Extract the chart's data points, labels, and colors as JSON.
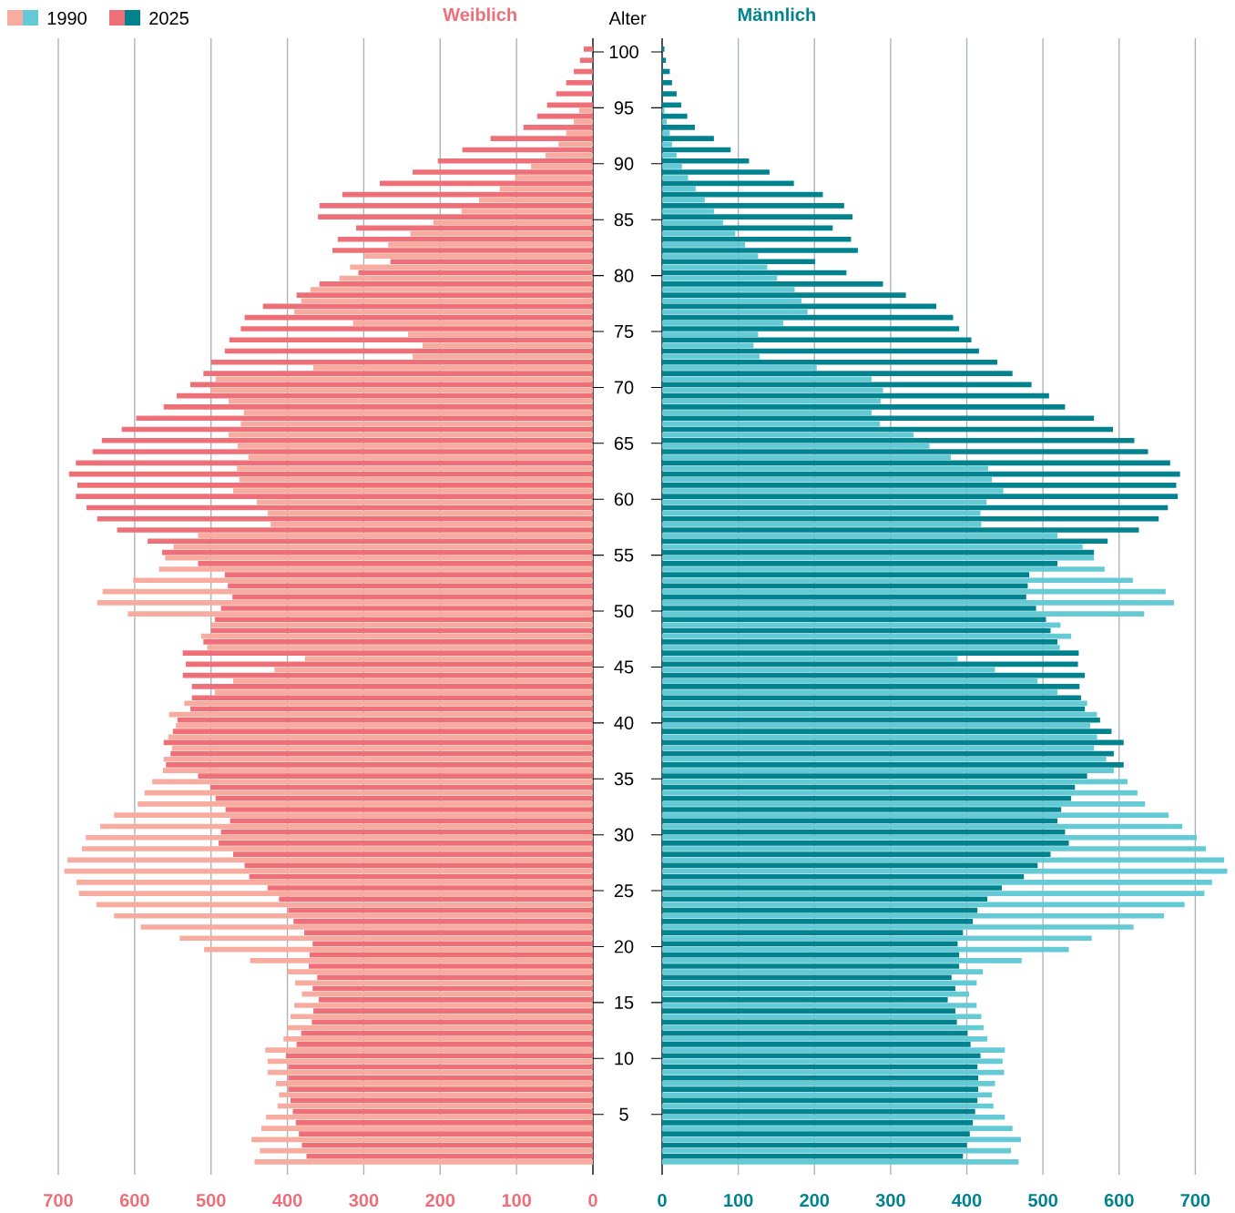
{
  "chart_data": [
    {
      "type": "bar",
      "orientation": "horizontal",
      "title": "Weiblich",
      "ylabel": "Alter",
      "categories": [
        "100",
        null,
        null,
        null,
        null,
        "95",
        null,
        null,
        null,
        null,
        "90",
        null,
        null,
        null,
        null,
        "85",
        null,
        null,
        null,
        null,
        "80",
        null,
        null,
        null,
        null,
        "75",
        null,
        null,
        null,
        null,
        "70",
        null,
        null,
        null,
        null,
        "65",
        null,
        null,
        null,
        null,
        "60",
        null,
        null,
        null,
        null,
        "55",
        null,
        null,
        null,
        null,
        "50",
        null,
        null,
        null,
        null,
        "45",
        null,
        null,
        null,
        null,
        "40",
        null,
        null,
        null,
        null,
        "35",
        null,
        null,
        null,
        null,
        "30",
        null,
        null,
        null,
        null,
        "25",
        null,
        null,
        null,
        null,
        "20",
        null,
        null,
        null,
        null,
        "15",
        null,
        null,
        null,
        null,
        "10",
        null,
        null,
        null,
        null,
        "5",
        null,
        null,
        null,
        null
      ],
      "series": [
        {
          "name": "1990",
          "color": "#f8ab9f",
          "values": [
            0,
            0,
            0,
            0,
            0,
            18,
            25,
            35,
            45,
            62,
            81,
            102,
            122,
            149,
            172,
            209,
            239,
            268,
            299,
            318,
            332,
            370,
            382,
            391,
            314,
            242,
            223,
            236,
            366,
            494,
            500,
            477,
            457,
            461,
            477,
            465,
            451,
            466,
            463,
            471,
            440,
            426,
            422,
            517,
            549,
            560,
            568,
            602,
            642,
            649,
            609,
            500,
            513,
            505,
            377,
            417,
            471,
            495,
            535,
            555,
            546,
            556,
            551,
            562,
            563,
            577,
            587,
            596,
            627,
            645,
            664,
            669,
            688,
            692,
            676,
            673,
            650,
            627,
            592,
            541,
            509,
            449,
            400,
            390,
            381,
            391,
            396,
            400,
            405,
            429,
            426,
            426,
            415,
            411,
            413,
            428,
            434,
            447,
            436,
            443
          ]
        },
        {
          "name": "2025",
          "color": "#ef6f79",
          "values": [
            12,
            17,
            25,
            35,
            48,
            60,
            73,
            91,
            134,
            171,
            203,
            236,
            279,
            328,
            358,
            360,
            310,
            334,
            341,
            265,
            307,
            358,
            388,
            432,
            456,
            461,
            476,
            482,
            500,
            510,
            527,
            545,
            562,
            598,
            617,
            643,
            655,
            677,
            686,
            675,
            677,
            663,
            649,
            623,
            583,
            564,
            517,
            482,
            478,
            472,
            487,
            495,
            500,
            510,
            537,
            533,
            537,
            525,
            525,
            527,
            544,
            550,
            562,
            553,
            559,
            517,
            501,
            494,
            481,
            475,
            487,
            490,
            471,
            456,
            450,
            426,
            411,
            399,
            392,
            378,
            367,
            371,
            372,
            361,
            367,
            359,
            366,
            368,
            382,
            388,
            402,
            399,
            399,
            399,
            396,
            393,
            389,
            385,
            381,
            375
          ]
        }
      ],
      "xlim": [
        700,
        0
      ],
      "xticks": [
        0,
        100,
        200,
        300,
        400,
        500,
        600,
        700
      ],
      "grid": "x",
      "legend": "top left"
    },
    {
      "type": "bar",
      "orientation": "horizontal",
      "title": "Männlich",
      "categories": [
        "100",
        null,
        null,
        null,
        null,
        "95",
        null,
        null,
        null,
        null,
        "90",
        null,
        null,
        null,
        null,
        "85",
        null,
        null,
        null,
        null,
        "80",
        null,
        null,
        null,
        null,
        "75",
        null,
        null,
        null,
        null,
        "70",
        null,
        null,
        null,
        null,
        "65",
        null,
        null,
        null,
        null,
        "60",
        null,
        null,
        null,
        null,
        "55",
        null,
        null,
        null,
        null,
        "50",
        null,
        null,
        null,
        null,
        "45",
        null,
        null,
        null,
        null,
        "40",
        null,
        null,
        null,
        null,
        "35",
        null,
        null,
        null,
        null,
        "30",
        null,
        null,
        null,
        null,
        "25",
        null,
        null,
        null,
        null,
        "20",
        null,
        null,
        null,
        null,
        "15",
        null,
        null,
        null,
        null,
        "10",
        null,
        null,
        null,
        null,
        "5",
        null,
        null,
        null,
        null
      ],
      "series": [
        {
          "color": "#63cad6",
          "values": [
            0,
            0,
            0,
            0,
            0,
            3,
            6,
            10,
            13,
            19,
            26,
            34,
            44,
            56,
            68,
            80,
            96,
            109,
            126,
            138,
            151,
            174,
            183,
            191,
            159,
            126,
            120,
            128,
            203,
            275,
            290,
            287,
            275,
            286,
            330,
            351,
            379,
            428,
            433,
            448,
            426,
            418,
            419,
            519,
            552,
            567,
            581,
            618,
            661,
            672,
            633,
            523,
            537,
            522,
            388,
            437,
            493,
            519,
            558,
            571,
            562,
            571,
            567,
            583,
            593,
            611,
            624,
            634,
            665,
            683,
            702,
            714,
            738,
            742,
            722,
            712,
            686,
            659,
            619,
            564,
            534,
            472,
            421,
            413,
            403,
            413,
            419,
            422,
            427,
            450,
            447,
            449,
            437,
            433,
            435,
            450,
            460,
            471,
            458,
            468
          ]
        },
        {
          "color": "#00838f",
          "values": [
            3,
            5,
            10,
            13,
            19,
            25,
            33,
            43,
            68,
            90,
            114,
            141,
            173,
            211,
            239,
            250,
            224,
            248,
            257,
            201,
            242,
            290,
            320,
            360,
            382,
            390,
            406,
            416,
            440,
            460,
            485,
            508,
            529,
            567,
            592,
            620,
            638,
            667,
            680,
            675,
            677,
            664,
            652,
            626,
            585,
            567,
            519,
            482,
            480,
            478,
            491,
            504,
            510,
            519,
            547,
            546,
            555,
            548,
            550,
            555,
            575,
            590,
            606,
            593,
            606,
            558,
            542,
            537,
            524,
            519,
            529,
            534,
            510,
            493,
            475,
            446,
            427,
            414,
            408,
            395,
            388,
            390,
            390,
            380,
            385,
            375,
            385,
            387,
            401,
            405,
            418,
            414,
            415,
            415,
            414,
            411,
            408,
            404,
            400,
            395
          ]
        }
      ],
      "xlim": [
        0,
        745
      ],
      "xticks": [
        0,
        100,
        200,
        300,
        400,
        500,
        600,
        700
      ],
      "grid": "x",
      "tick_labels": "x"
    }
  ]
}
